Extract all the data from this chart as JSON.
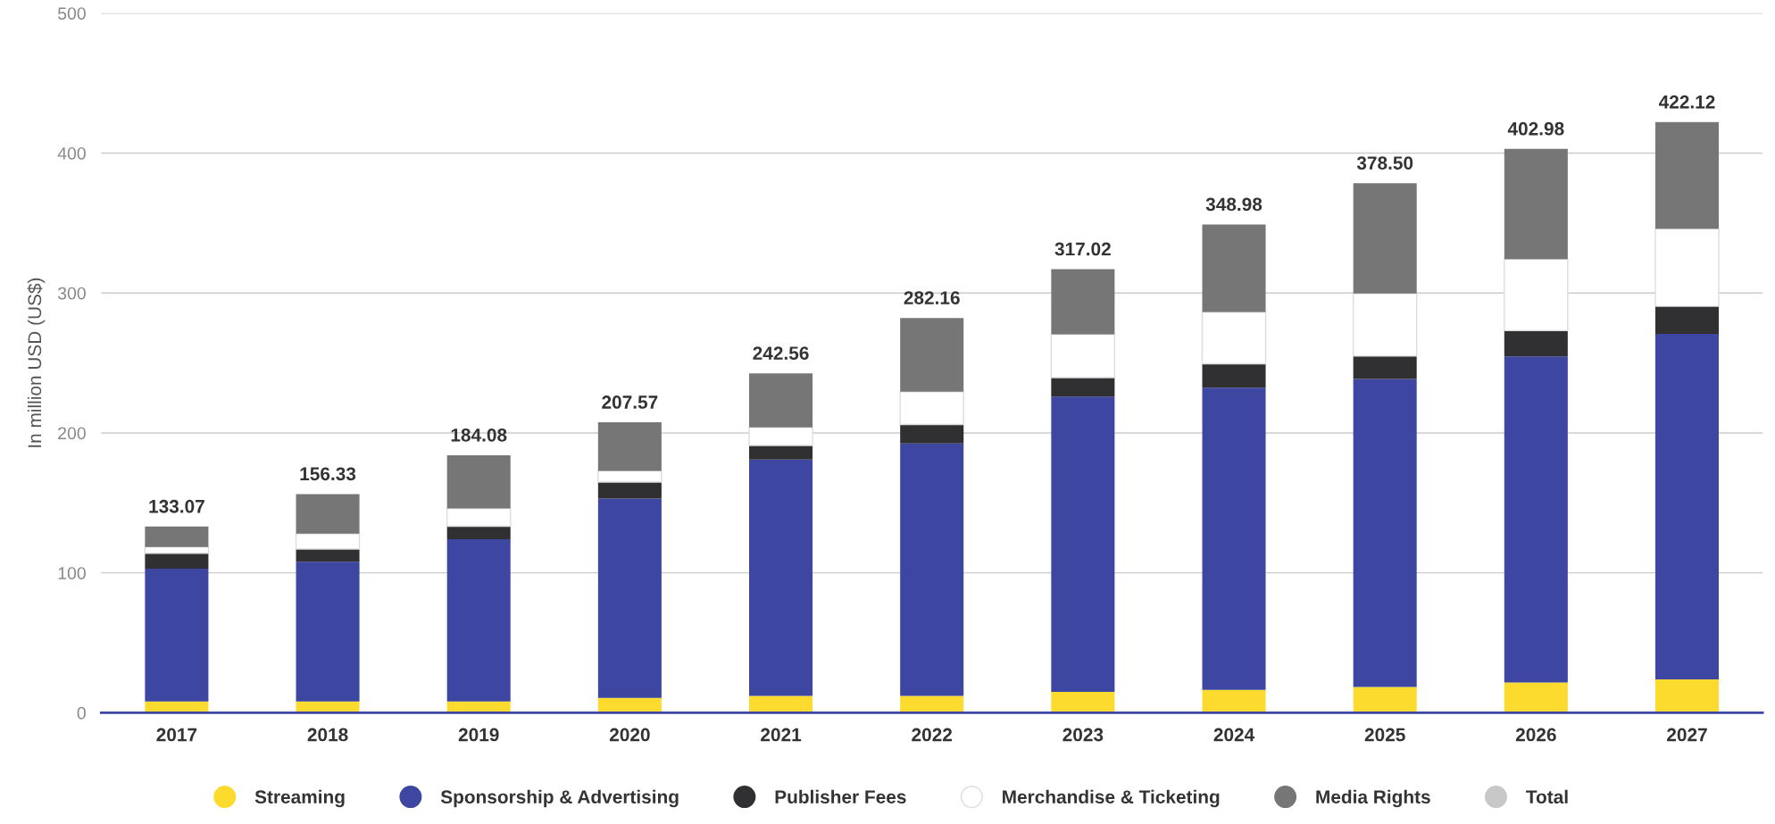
{
  "chart_data": {
    "type": "bar",
    "stacked": true,
    "ylabel": "In million USD (US$)",
    "categories": [
      "2017",
      "2018",
      "2019",
      "2020",
      "2021",
      "2022",
      "2023",
      "2024",
      "2025",
      "2026",
      "2027"
    ],
    "series": [
      {
        "name": "Streaming",
        "color": "#fdda2e",
        "values": [
          8,
          8,
          8,
          10.6,
          12,
          12,
          15,
          16.4,
          18.5,
          21.7,
          23.8
        ]
      },
      {
        "name": "Sponsorship & Advertising",
        "color": "#3d46a0",
        "values": [
          95,
          100,
          116,
          142.5,
          169,
          180.5,
          211,
          216,
          220,
          233,
          247
        ]
      },
      {
        "name": "Publisher Fees",
        "color": "#303032",
        "values": [
          11,
          9,
          9.3,
          11.8,
          10,
          13.5,
          13.5,
          17,
          16.4,
          18.5,
          19.7
        ]
      },
      {
        "name": "Merchandise & Ticketing",
        "color": "#ffffff",
        "values": [
          4.5,
          11,
          12.7,
          8,
          13,
          23.4,
          31,
          37,
          44.7,
          51,
          55.4
        ]
      },
      {
        "name": "Media Rights",
        "color": "#767676",
        "values": [
          14.57,
          28.33,
          38.08,
          34.67,
          38.56,
          52.76,
          46.52,
          62.58,
          78.9,
          78.78,
          76.22
        ]
      },
      {
        "name": "Total",
        "color": "#c8c8c8",
        "values": [
          null,
          null,
          null,
          null,
          null,
          null,
          null,
          null,
          null,
          null,
          null
        ]
      }
    ],
    "totals": [
      "133.07",
      "156.33",
      "184.08",
      "207.57",
      "242.56",
      "282.16",
      "317.02",
      "348.98",
      "378.50",
      "402.98",
      "422.12"
    ],
    "ylim": [
      0,
      500
    ],
    "yticks": [
      0,
      100,
      200,
      300,
      400,
      500
    ],
    "grid": "y",
    "legend": "bottom"
  }
}
